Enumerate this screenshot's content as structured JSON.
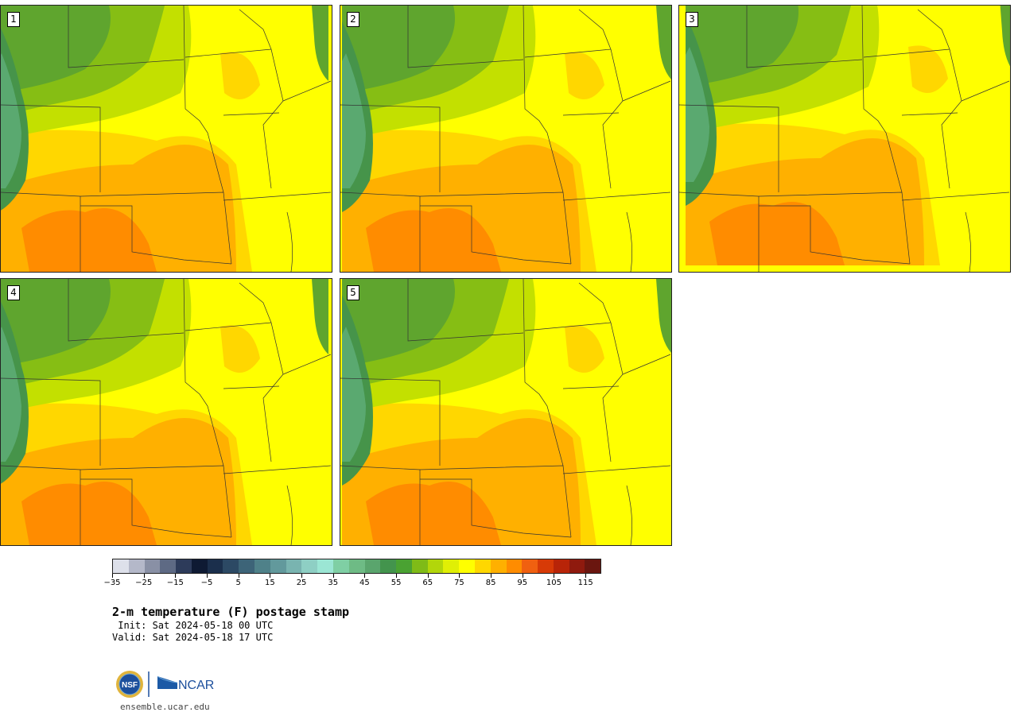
{
  "panels": [
    {
      "label": "1"
    },
    {
      "label": "2"
    },
    {
      "label": "3"
    },
    {
      "label": "4"
    },
    {
      "label": "5"
    }
  ],
  "colorbar": {
    "colors": [
      "#dde0ea",
      "#b4b8c9",
      "#8990a5",
      "#5e6a84",
      "#2d3b5a",
      "#0e1a33",
      "#1b2f4c",
      "#2c4964",
      "#3d6478",
      "#4f8189",
      "#62999c",
      "#79b4b0",
      "#8ecfc4",
      "#9be6d4",
      "#7fcfa4",
      "#6ebb85",
      "#5aa56d",
      "#43944d",
      "#4aa232",
      "#7fbb17",
      "#b2d60a",
      "#e0ef05",
      "#ffff00",
      "#ffd700",
      "#ffb000",
      "#ff8c00",
      "#f06010",
      "#d73a07",
      "#b82408",
      "#8f1a0e",
      "#6a160f"
    ],
    "tick_labels": [
      "−35",
      "−25",
      "−15",
      "−5",
      "5",
      "15",
      "25",
      "35",
      "45",
      "55",
      "65",
      "75",
      "85",
      "95",
      "105",
      "115"
    ]
  },
  "title": "2-m temperature (F) postage stamp",
  "init": " Init: Sat 2024-05-18 00 UTC",
  "valid": "Valid: Sat 2024-05-18 17 UTC",
  "logos": {
    "nsf_text": "NSF",
    "ncar_text": "NCAR"
  },
  "website": "ensemble.ucar.edu"
}
